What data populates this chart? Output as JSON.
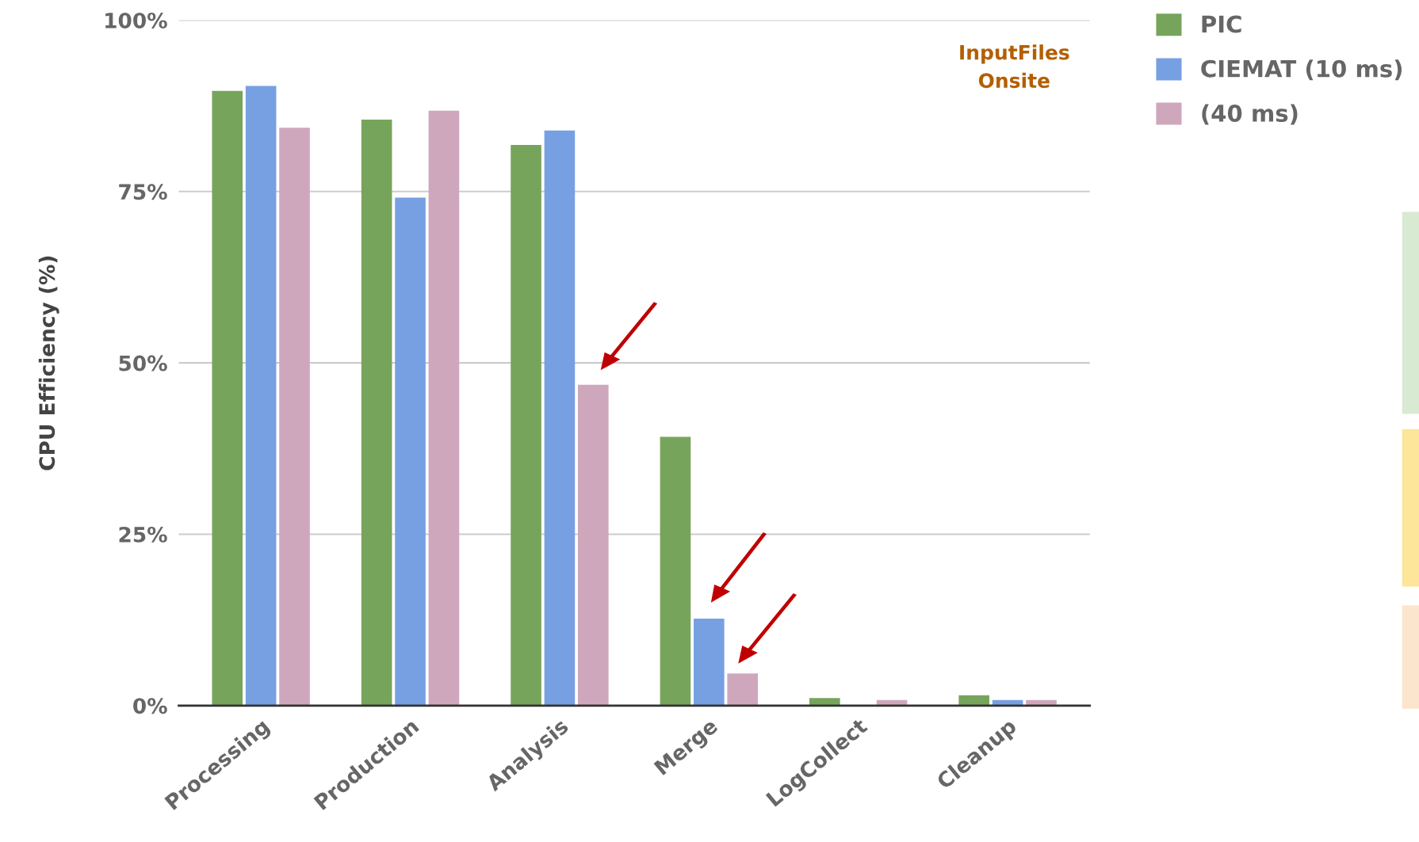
{
  "chart_data": {
    "type": "bar",
    "ylabel": "CPU Efficiency (%)",
    "categories": [
      "Processing",
      "Production",
      "Analysis",
      "Merge",
      "LogCollect",
      "Cleanup"
    ],
    "series": [
      {
        "name": "PIC",
        "color": "#77a45b",
        "values": [
          89.7,
          85.5,
          81.8,
          39.2,
          1.1,
          1.5
        ]
      },
      {
        "name": "CIEMAT (10 ms)",
        "color": "#77a0e3",
        "values": [
          90.4,
          74.1,
          83.9,
          12.7,
          0,
          0.8
        ]
      },
      {
        "name": "(40 ms)",
        "color": "#cfa7bd",
        "values": [
          84.3,
          86.8,
          46.8,
          4.7,
          0.8,
          0.8
        ]
      }
    ],
    "ylim": [
      0,
      100
    ],
    "yticks": [
      {
        "value": 0,
        "label": "0%"
      },
      {
        "value": 25,
        "label": "25%"
      },
      {
        "value": 50,
        "label": "50%"
      },
      {
        "value": 75,
        "label": "75%"
      },
      {
        "value": 100,
        "label": "100%"
      }
    ],
    "grid": "y",
    "legend": "top right",
    "annotations": [
      "InputFiles\nOnsite"
    ]
  }
}
